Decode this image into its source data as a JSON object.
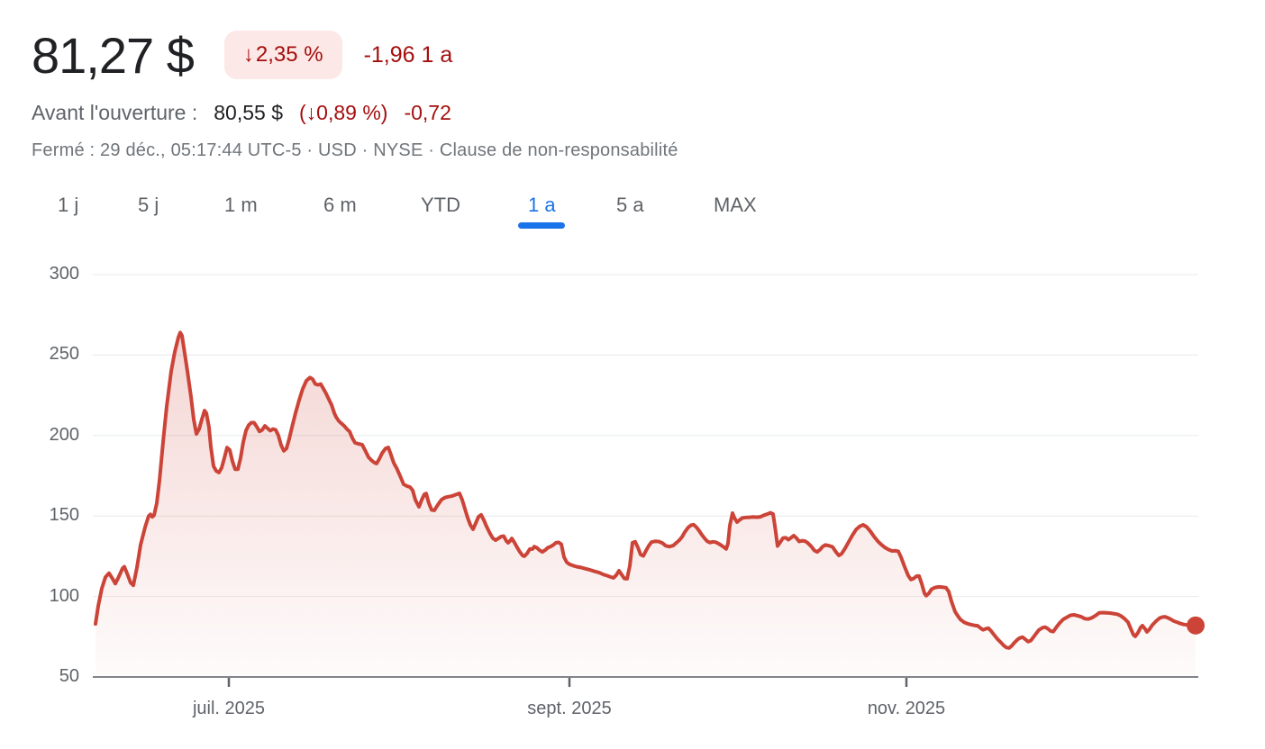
{
  "header": {
    "price": "81,27 $",
    "badge_arrow": "↓",
    "change_percent": "2,35 %",
    "change_absolute": "-1,96 1 a",
    "premarket_label": "Avant l'ouverture :",
    "premarket_price": "80,55 $",
    "premarket_change_percent": "(↓0,89 %)",
    "premarket_change_absolute": "-0,72",
    "status": "Fermé : 29 déc., 05:17:44 UTC-5 · USD · NYSE ·",
    "disclaimer": "Clause de non-responsabilité"
  },
  "tabs": {
    "items": [
      {
        "label": "1 j"
      },
      {
        "label": "5 j"
      },
      {
        "label": "1 m"
      },
      {
        "label": "6 m"
      },
      {
        "label": "YTD"
      },
      {
        "label": "1 a",
        "selected": true
      },
      {
        "label": "5 a"
      },
      {
        "label": "MAX"
      }
    ]
  },
  "colors": {
    "negative_text": "#a50e0e",
    "badge_bg": "#fce8e6",
    "selected_tab_blue": "#1a73e8",
    "line_red": "#cc4438",
    "grid_gray": "#e8eaed",
    "axis_gray": "#80868b",
    "label_gray": "#5f6368"
  },
  "chart_data": {
    "type": "area",
    "currency": "USD",
    "range": "1 a",
    "grid": true,
    "ylim": [
      50,
      300
    ],
    "y_ticks": [
      300,
      250,
      200,
      150,
      100,
      50
    ],
    "x_ticks": [
      {
        "label": "juil. 2025",
        "x": 254
      },
      {
        "label": "sept. 2025",
        "x": 632
      },
      {
        "label": "nov. 2025",
        "x": 1006
      }
    ],
    "plot": {
      "x0": 103,
      "x1": 1330,
      "y_top": 305,
      "y_bottom": 752
    },
    "line_color": "#cc4438",
    "fill_top_opacity": 0.22,
    "end_dot": true,
    "points": [
      [
        106,
        83
      ],
      [
        109,
        94
      ],
      [
        113,
        105
      ],
      [
        117,
        112
      ],
      [
        121,
        114.5
      ],
      [
        125,
        111
      ],
      [
        128,
        108
      ],
      [
        132,
        112.5
      ],
      [
        136,
        117.5
      ],
      [
        138,
        118.5
      ],
      [
        142,
        113
      ],
      [
        145,
        108.5
      ],
      [
        148,
        107
      ],
      [
        152,
        118
      ],
      [
        156,
        132
      ],
      [
        161,
        143
      ],
      [
        165,
        150
      ],
      [
        167,
        151
      ],
      [
        169,
        149.5
      ],
      [
        171,
        150.5
      ],
      [
        174,
        158
      ],
      [
        177,
        172
      ],
      [
        181,
        196
      ],
      [
        185,
        218
      ],
      [
        190,
        240
      ],
      [
        194,
        252
      ],
      [
        198,
        261
      ],
      [
        200,
        264
      ],
      [
        202,
        262
      ],
      [
        205,
        251
      ],
      [
        208,
        240
      ],
      [
        212,
        224
      ],
      [
        215,
        210
      ],
      [
        218,
        201
      ],
      [
        221,
        204
      ],
      [
        224,
        210
      ],
      [
        227,
        215.5
      ],
      [
        229,
        214
      ],
      [
        232,
        205
      ],
      [
        234,
        193
      ],
      [
        237,
        181
      ],
      [
        240,
        178
      ],
      [
        243,
        177
      ],
      [
        246,
        180
      ],
      [
        249,
        186
      ],
      [
        252,
        192.5
      ],
      [
        255,
        191
      ],
      [
        258,
        184
      ],
      [
        261,
        179
      ],
      [
        264,
        179
      ],
      [
        267,
        186
      ],
      [
        270,
        196
      ],
      [
        273,
        203
      ],
      [
        276,
        206.5
      ],
      [
        279,
        208
      ],
      [
        282,
        208
      ],
      [
        285,
        205.5
      ],
      [
        288,
        202.5
      ],
      [
        291,
        203.5
      ],
      [
        294,
        206
      ],
      [
        297,
        204.5
      ],
      [
        300,
        203
      ],
      [
        303,
        204
      ],
      [
        306,
        203.5
      ],
      [
        309,
        200
      ],
      [
        312,
        194
      ],
      [
        315,
        190.5
      ],
      [
        318,
        192
      ],
      [
        321,
        198
      ],
      [
        324,
        205
      ],
      [
        328,
        214
      ],
      [
        332,
        222
      ],
      [
        336,
        229
      ],
      [
        340,
        234
      ],
      [
        344,
        236
      ],
      [
        347,
        235
      ],
      [
        350,
        232
      ],
      [
        353,
        231.5
      ],
      [
        356,
        232
      ],
      [
        359,
        229
      ],
      [
        362,
        226
      ],
      [
        365,
        222.5
      ],
      [
        368,
        219
      ],
      [
        371,
        214
      ],
      [
        373,
        211.5
      ],
      [
        376,
        209
      ],
      [
        379,
        207.5
      ],
      [
        382,
        206
      ],
      [
        385,
        204
      ],
      [
        388,
        202.5
      ],
      [
        391,
        198.5
      ],
      [
        394,
        195.5
      ],
      [
        398,
        194.8
      ],
      [
        402,
        194.3
      ],
      [
        406,
        190
      ],
      [
        409,
        186.5
      ],
      [
        413,
        184.3
      ],
      [
        416,
        183
      ],
      [
        418,
        182.6
      ],
      [
        421,
        185.5
      ],
      [
        424,
        189
      ],
      [
        428,
        192
      ],
      [
        431,
        192.6
      ],
      [
        434,
        188
      ],
      [
        437,
        183
      ],
      [
        440,
        180
      ],
      [
        444,
        175
      ],
      [
        448,
        169.7
      ],
      [
        452,
        168.5
      ],
      [
        455,
        168
      ],
      [
        458,
        166
      ],
      [
        461,
        160
      ],
      [
        465,
        155.7
      ],
      [
        468,
        160
      ],
      [
        471,
        163.5
      ],
      [
        473,
        164
      ],
      [
        476,
        158
      ],
      [
        479,
        153.8
      ],
      [
        482,
        153.5
      ],
      [
        486,
        157
      ],
      [
        490,
        160.2
      ],
      [
        494,
        161.5
      ],
      [
        498,
        162
      ],
      [
        502,
        162.5
      ],
      [
        506,
        163.3
      ],
      [
        510,
        164.1
      ],
      [
        513,
        160
      ],
      [
        516,
        154.5
      ],
      [
        519,
        149
      ],
      [
        522,
        144.5
      ],
      [
        525,
        141.8
      ],
      [
        528,
        145.5
      ],
      [
        531,
        149.5
      ],
      [
        534,
        150.7
      ],
      [
        537,
        147.5
      ],
      [
        540,
        143.5
      ],
      [
        544,
        139
      ],
      [
        547,
        136.2
      ],
      [
        550,
        135
      ],
      [
        553,
        136
      ],
      [
        556,
        137.2
      ],
      [
        559,
        137.5
      ],
      [
        562,
        134.5
      ],
      [
        564,
        133.4
      ],
      [
        566,
        134.5
      ],
      [
        568,
        136.1
      ],
      [
        571,
        133.5
      ],
      [
        574,
        130.5
      ],
      [
        577,
        127.7
      ],
      [
        580,
        125.5
      ],
      [
        582,
        125
      ],
      [
        585,
        126.8
      ],
      [
        588,
        129.5
      ],
      [
        591,
        129.5
      ],
      [
        593,
        131
      ],
      [
        596,
        130.2
      ],
      [
        599,
        128.7
      ],
      [
        602,
        127.7
      ],
      [
        605,
        128.8
      ],
      [
        608,
        130.3
      ],
      [
        611,
        131
      ],
      [
        614,
        132
      ],
      [
        617,
        133.4
      ],
      [
        620,
        133.6
      ],
      [
        623,
        132.5
      ],
      [
        626,
        124.5
      ],
      [
        629,
        121.3
      ],
      [
        632,
        120
      ],
      [
        636,
        119.2
      ],
      [
        640,
        118.5
      ],
      [
        645,
        118
      ],
      [
        650,
        117.2
      ],
      [
        655,
        116.5
      ],
      [
        660,
        115.6
      ],
      [
        665,
        114.8
      ],
      [
        670,
        113.6
      ],
      [
        674,
        112.9
      ],
      [
        678,
        112.1
      ],
      [
        681,
        111.6
      ],
      [
        684,
        113.3
      ],
      [
        687,
        116
      ],
      [
        690,
        113.6
      ],
      [
        693,
        111.2
      ],
      [
        696,
        111
      ],
      [
        699,
        119
      ],
      [
        702,
        133.4
      ],
      [
        705,
        134
      ],
      [
        708,
        130.5
      ],
      [
        711,
        126
      ],
      [
        714,
        125.2
      ],
      [
        717,
        128.5
      ],
      [
        720,
        131.5
      ],
      [
        723,
        133.8
      ],
      [
        727,
        134.3
      ],
      [
        731,
        134.2
      ],
      [
        735,
        133.3
      ],
      [
        739,
        131.5
      ],
      [
        743,
        131
      ],
      [
        747,
        131.6
      ],
      [
        751,
        133.5
      ],
      [
        754,
        135
      ],
      [
        757,
        137
      ],
      [
        760,
        140
      ],
      [
        764,
        143
      ],
      [
        767,
        144.3
      ],
      [
        770,
        144.6
      ],
      [
        773,
        143
      ],
      [
        776,
        140.8
      ],
      [
        779,
        138.3
      ],
      [
        782,
        136.2
      ],
      [
        785,
        134.3
      ],
      [
        788,
        133.5
      ],
      [
        791,
        134
      ],
      [
        794,
        133.8
      ],
      [
        797,
        133
      ],
      [
        800,
        132
      ],
      [
        803,
        130.8
      ],
      [
        806,
        129.6
      ],
      [
        808,
        133
      ],
      [
        810,
        144
      ],
      [
        813,
        151.8
      ],
      [
        815,
        149
      ],
      [
        818,
        146.2
      ],
      [
        821,
        147.6
      ],
      [
        824,
        148.8
      ],
      [
        828,
        149.1
      ],
      [
        832,
        149.2
      ],
      [
        836,
        149.4
      ],
      [
        840,
        149.3
      ],
      [
        844,
        149.5
      ],
      [
        848,
        150.5
      ],
      [
        852,
        151.3
      ],
      [
        855,
        152
      ],
      [
        858,
        151.3
      ],
      [
        860,
        144
      ],
      [
        863,
        131.4
      ],
      [
        866,
        133.8
      ],
      [
        869,
        136.3
      ],
      [
        872,
        136.5
      ],
      [
        875,
        135.3
      ],
      [
        878,
        136.5
      ],
      [
        881,
        137.8
      ],
      [
        884,
        136.3
      ],
      [
        887,
        134.2
      ],
      [
        890,
        134.6
      ],
      [
        893,
        134.5
      ],
      [
        896,
        133.5
      ],
      [
        900,
        131.4
      ],
      [
        904,
        128.5
      ],
      [
        907,
        127.7
      ],
      [
        910,
        129
      ],
      [
        913,
        131
      ],
      [
        916,
        132
      ],
      [
        920,
        131.6
      ],
      [
        924,
        130.8
      ],
      [
        928,
        127.5
      ],
      [
        931,
        125.5
      ],
      [
        934,
        126.5
      ],
      [
        938,
        130
      ],
      [
        942,
        134
      ],
      [
        946,
        138
      ],
      [
        950,
        141.5
      ],
      [
        954,
        143.5
      ],
      [
        958,
        144.5
      ],
      [
        962,
        143.2
      ],
      [
        966,
        140.5
      ],
      [
        970,
        137.3
      ],
      [
        974,
        134.5
      ],
      [
        978,
        132.3
      ],
      [
        982,
        130.5
      ],
      [
        986,
        129.2
      ],
      [
        990,
        128.3
      ],
      [
        994,
        128.4
      ],
      [
        997,
        128
      ],
      [
        1000,
        124.5
      ],
      [
        1004,
        118.5
      ],
      [
        1008,
        113
      ],
      [
        1011,
        110.5
      ],
      [
        1014,
        111.2
      ],
      [
        1017,
        112.6
      ],
      [
        1020,
        112.8
      ],
      [
        1023,
        108
      ],
      [
        1026,
        102
      ],
      [
        1028,
        100.5
      ],
      [
        1031,
        102
      ],
      [
        1034,
        104.6
      ],
      [
        1038,
        105.6
      ],
      [
        1042,
        106
      ],
      [
        1046,
        105.8
      ],
      [
        1050,
        105.4
      ],
      [
        1053,
        103
      ],
      [
        1056,
        97
      ],
      [
        1060,
        90.6
      ],
      [
        1063,
        88
      ],
      [
        1066,
        85.7
      ],
      [
        1070,
        84
      ],
      [
        1073,
        83.3
      ],
      [
        1077,
        82.6
      ],
      [
        1081,
        82.1
      ],
      [
        1085,
        81.8
      ],
      [
        1088,
        80.5
      ],
      [
        1091,
        79.3
      ],
      [
        1094,
        79.9
      ],
      [
        1097,
        80.3
      ],
      [
        1100,
        78.6
      ],
      [
        1103,
        76.4
      ],
      [
        1107,
        73.6
      ],
      [
        1110,
        71.9
      ],
      [
        1114,
        69.6
      ],
      [
        1117,
        68.3
      ],
      [
        1120,
        68
      ],
      [
        1123,
        69.4
      ],
      [
        1126,
        71.4
      ],
      [
        1130,
        73.6
      ],
      [
        1133,
        74.5
      ],
      [
        1135,
        74.7
      ],
      [
        1138,
        73.4
      ],
      [
        1141,
        72
      ],
      [
        1144,
        72.6
      ],
      [
        1147,
        74.8
      ],
      [
        1150,
        77
      ],
      [
        1153,
        79.2
      ],
      [
        1157,
        80.6
      ],
      [
        1160,
        81
      ],
      [
        1163,
        80
      ],
      [
        1166,
        78.6
      ],
      [
        1169,
        78.2
      ],
      [
        1172,
        80.6
      ],
      [
        1176,
        83.5
      ],
      [
        1180,
        85.8
      ],
      [
        1184,
        87
      ],
      [
        1188,
        88.3
      ],
      [
        1192,
        88.6
      ],
      [
        1196,
        88.1
      ],
      [
        1200,
        87.4
      ],
      [
        1204,
        86.2
      ],
      [
        1208,
        86
      ],
      [
        1212,
        86.8
      ],
      [
        1216,
        88.2
      ],
      [
        1220,
        89.8
      ],
      [
        1224,
        90
      ],
      [
        1228,
        89.9
      ],
      [
        1232,
        89.7
      ],
      [
        1236,
        89.4
      ],
      [
        1240,
        89
      ],
      [
        1244,
        88
      ],
      [
        1248,
        86.3
      ],
      [
        1252,
        84
      ],
      [
        1255,
        80
      ],
      [
        1258,
        76.2
      ],
      [
        1260,
        75.2
      ],
      [
        1263,
        77.5
      ],
      [
        1266,
        80.8
      ],
      [
        1268,
        81.9
      ],
      [
        1271,
        79.8
      ],
      [
        1273,
        78
      ],
      [
        1276,
        79.8
      ],
      [
        1279,
        82.3
      ],
      [
        1283,
        84.7
      ],
      [
        1287,
        86.6
      ],
      [
        1290,
        87.2
      ],
      [
        1293,
        87.4
      ],
      [
        1297,
        86.6
      ],
      [
        1300,
        85.6
      ],
      [
        1303,
        84.7
      ],
      [
        1307,
        83.9
      ],
      [
        1310,
        83.2
      ],
      [
        1314,
        82.6
      ],
      [
        1318,
        82.3
      ],
      [
        1322,
        82.1
      ],
      [
        1327,
        82
      ]
    ]
  }
}
